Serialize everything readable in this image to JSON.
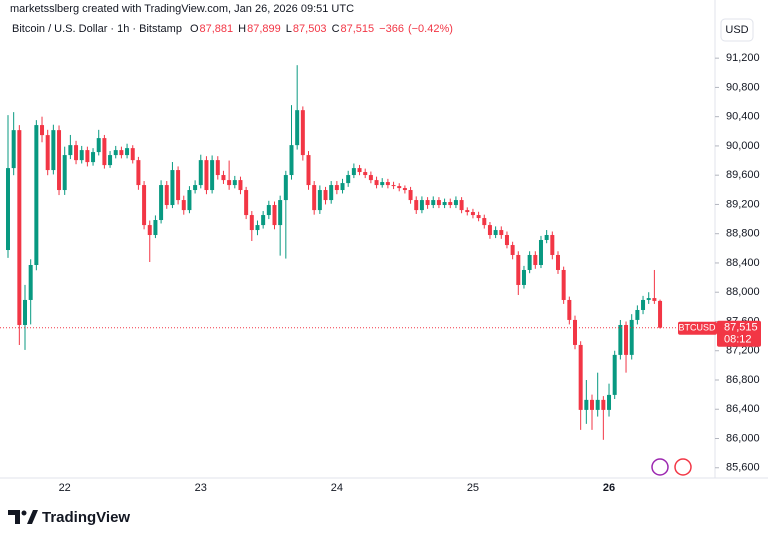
{
  "chart_data": {
    "type": "candlestick",
    "attribution": "marketsslberg created with TradingView.com, Jan 26, 2026 09:51 UTC",
    "symbol": "Bitcoin / U.S. Dollar · 1h · Bitstamp",
    "legend_keys": [
      "O",
      "H",
      "L",
      "C"
    ],
    "legend_values": [
      {
        "value": 87881,
        "label": "87,881"
      },
      {
        "value": 87899,
        "label": "87,899"
      },
      {
        "value": 87503,
        "label": "87,503"
      },
      {
        "value": 87515,
        "label": "87,515"
      }
    ],
    "change": {
      "value": -366,
      "label": "−366"
    },
    "change_pct": {
      "value": -0.42,
      "label": "(−0.42%)"
    },
    "currency": "USD",
    "symbol_tag": "BTCUSD",
    "last_price": {
      "value": 87515,
      "label": "87,515"
    },
    "countdown": "08:12",
    "brand": "TradingView",
    "up_color": "#089981",
    "down_color": "#f23645",
    "ylim": [
      85460,
      91790
    ],
    "yticks": [
      {
        "value": 85600,
        "label": "85,600"
      },
      {
        "value": 86000,
        "label": "86,000"
      },
      {
        "value": 86400,
        "label": "86,400"
      },
      {
        "value": 86800,
        "label": "86,800"
      },
      {
        "value": 87200,
        "label": "87,200"
      },
      {
        "value": 87600,
        "label": "87,600"
      },
      {
        "value": 88000,
        "label": "88,000"
      },
      {
        "value": 88400,
        "label": "88,400"
      },
      {
        "value": 88800,
        "label": "88,800"
      },
      {
        "value": 89200,
        "label": "89,200"
      },
      {
        "value": 89600,
        "label": "89,600"
      },
      {
        "value": 90000,
        "label": "90,000"
      },
      {
        "value": 90400,
        "label": "90,400"
      },
      {
        "value": 90800,
        "label": "90,800"
      },
      {
        "value": 91200,
        "label": "91,200"
      }
    ],
    "categories": [
      null,
      null,
      null,
      null,
      null,
      null,
      null,
      null,
      null,
      null,
      "22",
      null,
      null,
      null,
      null,
      null,
      null,
      null,
      null,
      null,
      null,
      null,
      null,
      null,
      null,
      null,
      null,
      null,
      null,
      null,
      null,
      null,
      null,
      null,
      "23",
      null,
      null,
      null,
      null,
      null,
      null,
      null,
      null,
      null,
      null,
      null,
      null,
      null,
      null,
      null,
      null,
      null,
      null,
      null,
      null,
      null,
      null,
      null,
      "24",
      null,
      null,
      null,
      null,
      null,
      null,
      null,
      null,
      null,
      null,
      null,
      null,
      null,
      null,
      null,
      null,
      null,
      null,
      null,
      null,
      null,
      null,
      null,
      "25",
      null,
      null,
      null,
      null,
      null,
      null,
      null,
      null,
      null,
      null,
      null,
      null,
      null,
      null,
      null,
      null,
      null,
      null,
      null,
      null,
      null,
      null,
      null,
      "26",
      null,
      null,
      null,
      null,
      null,
      null,
      null,
      null,
      null
    ],
    "open": [
      88577,
      89697,
      90216,
      87552,
      87894,
      88372,
      90285,
      90148,
      89670,
      90216,
      89397,
      89875,
      90011,
      89806,
      89943,
      89779,
      89916,
      90107,
      89738,
      89875,
      89943,
      89875,
      89970,
      89806,
      89465,
      88918,
      88782,
      88987,
      89465,
      89192,
      89670,
      89260,
      89123,
      89397,
      89465,
      89806,
      89397,
      89806,
      89602,
      89533,
      89465,
      89533,
      89397,
      89055,
      88850,
      88918,
      89055,
      89192,
      88918,
      89260,
      89602,
      90011,
      90489,
      89875,
      89465,
      89123,
      89397,
      89260,
      89465,
      89397,
      89492,
      89602,
      89697,
      89643,
      89602,
      89533,
      89465,
      89506,
      89465,
      89451,
      89424,
      89397,
      89260,
      89123,
      89260,
      89192,
      89260,
      89192,
      89233,
      89192,
      89260,
      89123,
      89096,
      89055,
      89014,
      88918,
      88782,
      88850,
      88782,
      88645,
      88509,
      88099,
      88304,
      88509,
      88372,
      88714,
      88782,
      88509,
      88304,
      87894,
      87621,
      87279,
      86391,
      86528,
      86391,
      86528,
      86391,
      86596,
      87143,
      87552,
      87143,
      87621,
      87757,
      87894,
      87920,
      87881
    ],
    "high": [
      90421,
      90462,
      90285,
      88100,
      88450,
      90353,
      90400,
      90220,
      90290,
      90280,
      89990,
      90150,
      90070,
      90000,
      89990,
      89970,
      90220,
      90150,
      89930,
      90000,
      89990,
      90030,
      90010,
      89850,
      89520,
      88980,
      89050,
      89530,
      89520,
      89780,
      89720,
      89320,
      89450,
      89530,
      89880,
      89860,
      89870,
      89860,
      89660,
      89800,
      89590,
      89580,
      89440,
      89110,
      88980,
      89110,
      89250,
      89240,
      89320,
      89660,
      90558,
      91104,
      90540,
      89930,
      89520,
      89460,
      89440,
      89520,
      89520,
      89550,
      89660,
      89760,
      89740,
      89690,
      89650,
      89580,
      89560,
      89550,
      89510,
      89490,
      89460,
      89440,
      89310,
      89310,
      89300,
      89310,
      89300,
      89280,
      89280,
      89310,
      89300,
      89160,
      89140,
      89100,
      89060,
      88960,
      88900,
      88900,
      88830,
      88690,
      88560,
      88360,
      88560,
      88560,
      88770,
      88850,
      88830,
      88560,
      88350,
      87940,
      87680,
      87330,
      86800,
      86600,
      86900,
      86580,
      86750,
      87200,
      87620,
      87600,
      87700,
      87820,
      87950,
      88000,
      88304,
      87899
    ],
    "low": [
      88470,
      89600,
      87279,
      87211,
      87560,
      88300,
      90050,
      89600,
      89610,
      89328,
      89330,
      89820,
      89750,
      89760,
      89720,
      89730,
      89870,
      89690,
      89700,
      89830,
      89830,
      89830,
      89760,
      89400,
      88860,
      88413,
      88740,
      88940,
      89140,
      89150,
      89200,
      89060,
      89080,
      89350,
      89420,
      89340,
      89350,
      89540,
      89480,
      89400,
      89420,
      89340,
      89000,
      88700,
      88780,
      88870,
      89000,
      88860,
      88500,
      88460,
      89540,
      89950,
      89800,
      89400,
      89060,
      89070,
      89200,
      89210,
      89340,
      89350,
      89440,
      89560,
      89600,
      89560,
      89490,
      89420,
      89430,
      89420,
      89410,
      89380,
      89350,
      89210,
      89070,
      89080,
      89140,
      89150,
      89150,
      89150,
      89150,
      89150,
      89080,
      89050,
      89010,
      88970,
      88870,
      88730,
      88740,
      88730,
      88600,
      88450,
      87962,
      88050,
      88260,
      88320,
      88330,
      88670,
      88450,
      88250,
      87840,
      87560,
      87220,
      86118,
      86200,
      86118,
      86300,
      85982,
      86300,
      86540,
      87080,
      86900,
      87080,
      87560,
      87700,
      87840,
      87840,
      87503
    ],
    "close": [
      89697,
      90216,
      87552,
      87894,
      88372,
      90285,
      90148,
      89670,
      90216,
      89397,
      89875,
      90011,
      89806,
      89943,
      89779,
      89916,
      90107,
      89738,
      89875,
      89943,
      89875,
      89970,
      89806,
      89465,
      88918,
      88782,
      88987,
      89465,
      89192,
      89670,
      89260,
      89123,
      89397,
      89465,
      89806,
      89397,
      89806,
      89602,
      89533,
      89465,
      89533,
      89397,
      89055,
      88850,
      88918,
      89055,
      89192,
      88918,
      89260,
      89602,
      90011,
      90489,
      89875,
      89465,
      89123,
      89397,
      89260,
      89465,
      89397,
      89492,
      89602,
      89697,
      89643,
      89602,
      89533,
      89465,
      89506,
      89465,
      89451,
      89424,
      89397,
      89260,
      89123,
      89260,
      89192,
      89260,
      89192,
      89233,
      89192,
      89260,
      89123,
      89096,
      89055,
      89014,
      88918,
      88782,
      88850,
      88782,
      88645,
      88509,
      88099,
      88304,
      88509,
      88372,
      88714,
      88782,
      88509,
      88304,
      87894,
      87621,
      87279,
      86391,
      86528,
      86391,
      86528,
      86391,
      86596,
      87143,
      87552,
      87143,
      87621,
      87757,
      87894,
      87920,
      87881,
      87515
    ]
  }
}
